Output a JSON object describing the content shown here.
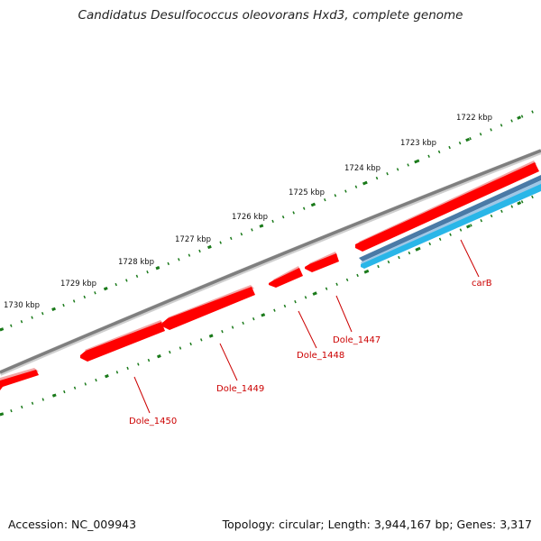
{
  "title": "Candidatus Desulfococcus oleovorans Hxd3, complete genome",
  "footer": {
    "accession": "Accession: NC_009943",
    "summary": "Topology: circular; Length: 3,944,167 bp; Genes: 3,317"
  },
  "scale_labels": [
    "1722 kbp",
    "1723 kbp",
    "1724 kbp",
    "1725 kbp",
    "1726 kbp",
    "1727 kbp",
    "1728 kbp",
    "1729 kbp",
    "1730 kbp"
  ],
  "gene_labels": [
    "carB",
    "Dole_1447",
    "Dole_1448",
    "Dole_1449",
    "Dole_1450"
  ],
  "colors": {
    "backbone": "#7f7f7f",
    "forward_strand_gene": "#ff0000",
    "reverse_strand_gene_dark": "#4a7aa6",
    "reverse_strand_gene_light": "#29b6e8",
    "tick": "#1a7a1a",
    "label": "#cc0000"
  }
}
